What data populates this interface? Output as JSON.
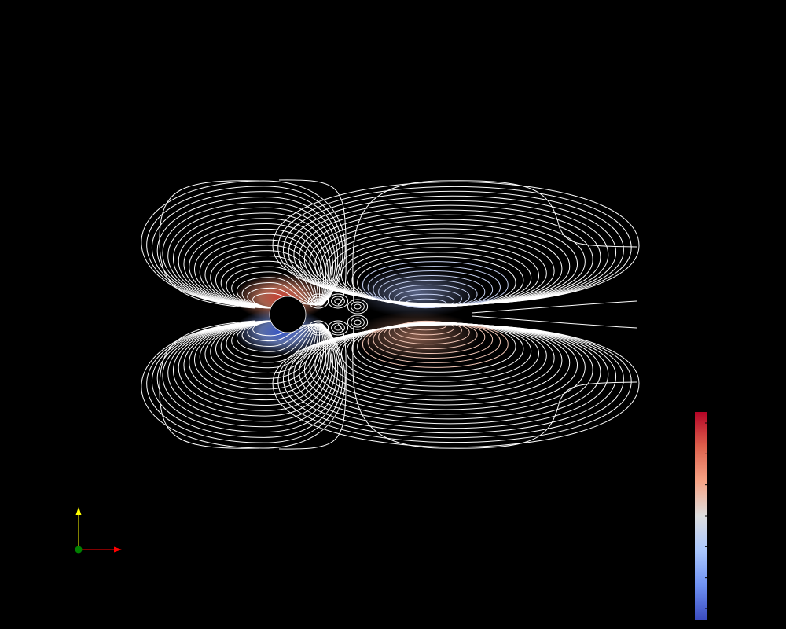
{
  "scene": {
    "background": "#000000",
    "contour_color": "#ffffff",
    "field_colors": {
      "positive": "#e7604d",
      "neutral": "#dddddd",
      "negative": "#4a67d6"
    }
  },
  "colorbar": {
    "colormap": "cool-to-warm",
    "stops": [
      "#b40426",
      "#dd604c",
      "#f6a385",
      "#dddddd",
      "#aac7fd",
      "#6f92f3",
      "#3b4cc0"
    ],
    "tick_count": 7,
    "labels_visible": false
  },
  "axes_triad": {
    "x_axis_color": "#ff0000",
    "y_axis_color": "#ffff00",
    "origin_color": "#008000"
  }
}
